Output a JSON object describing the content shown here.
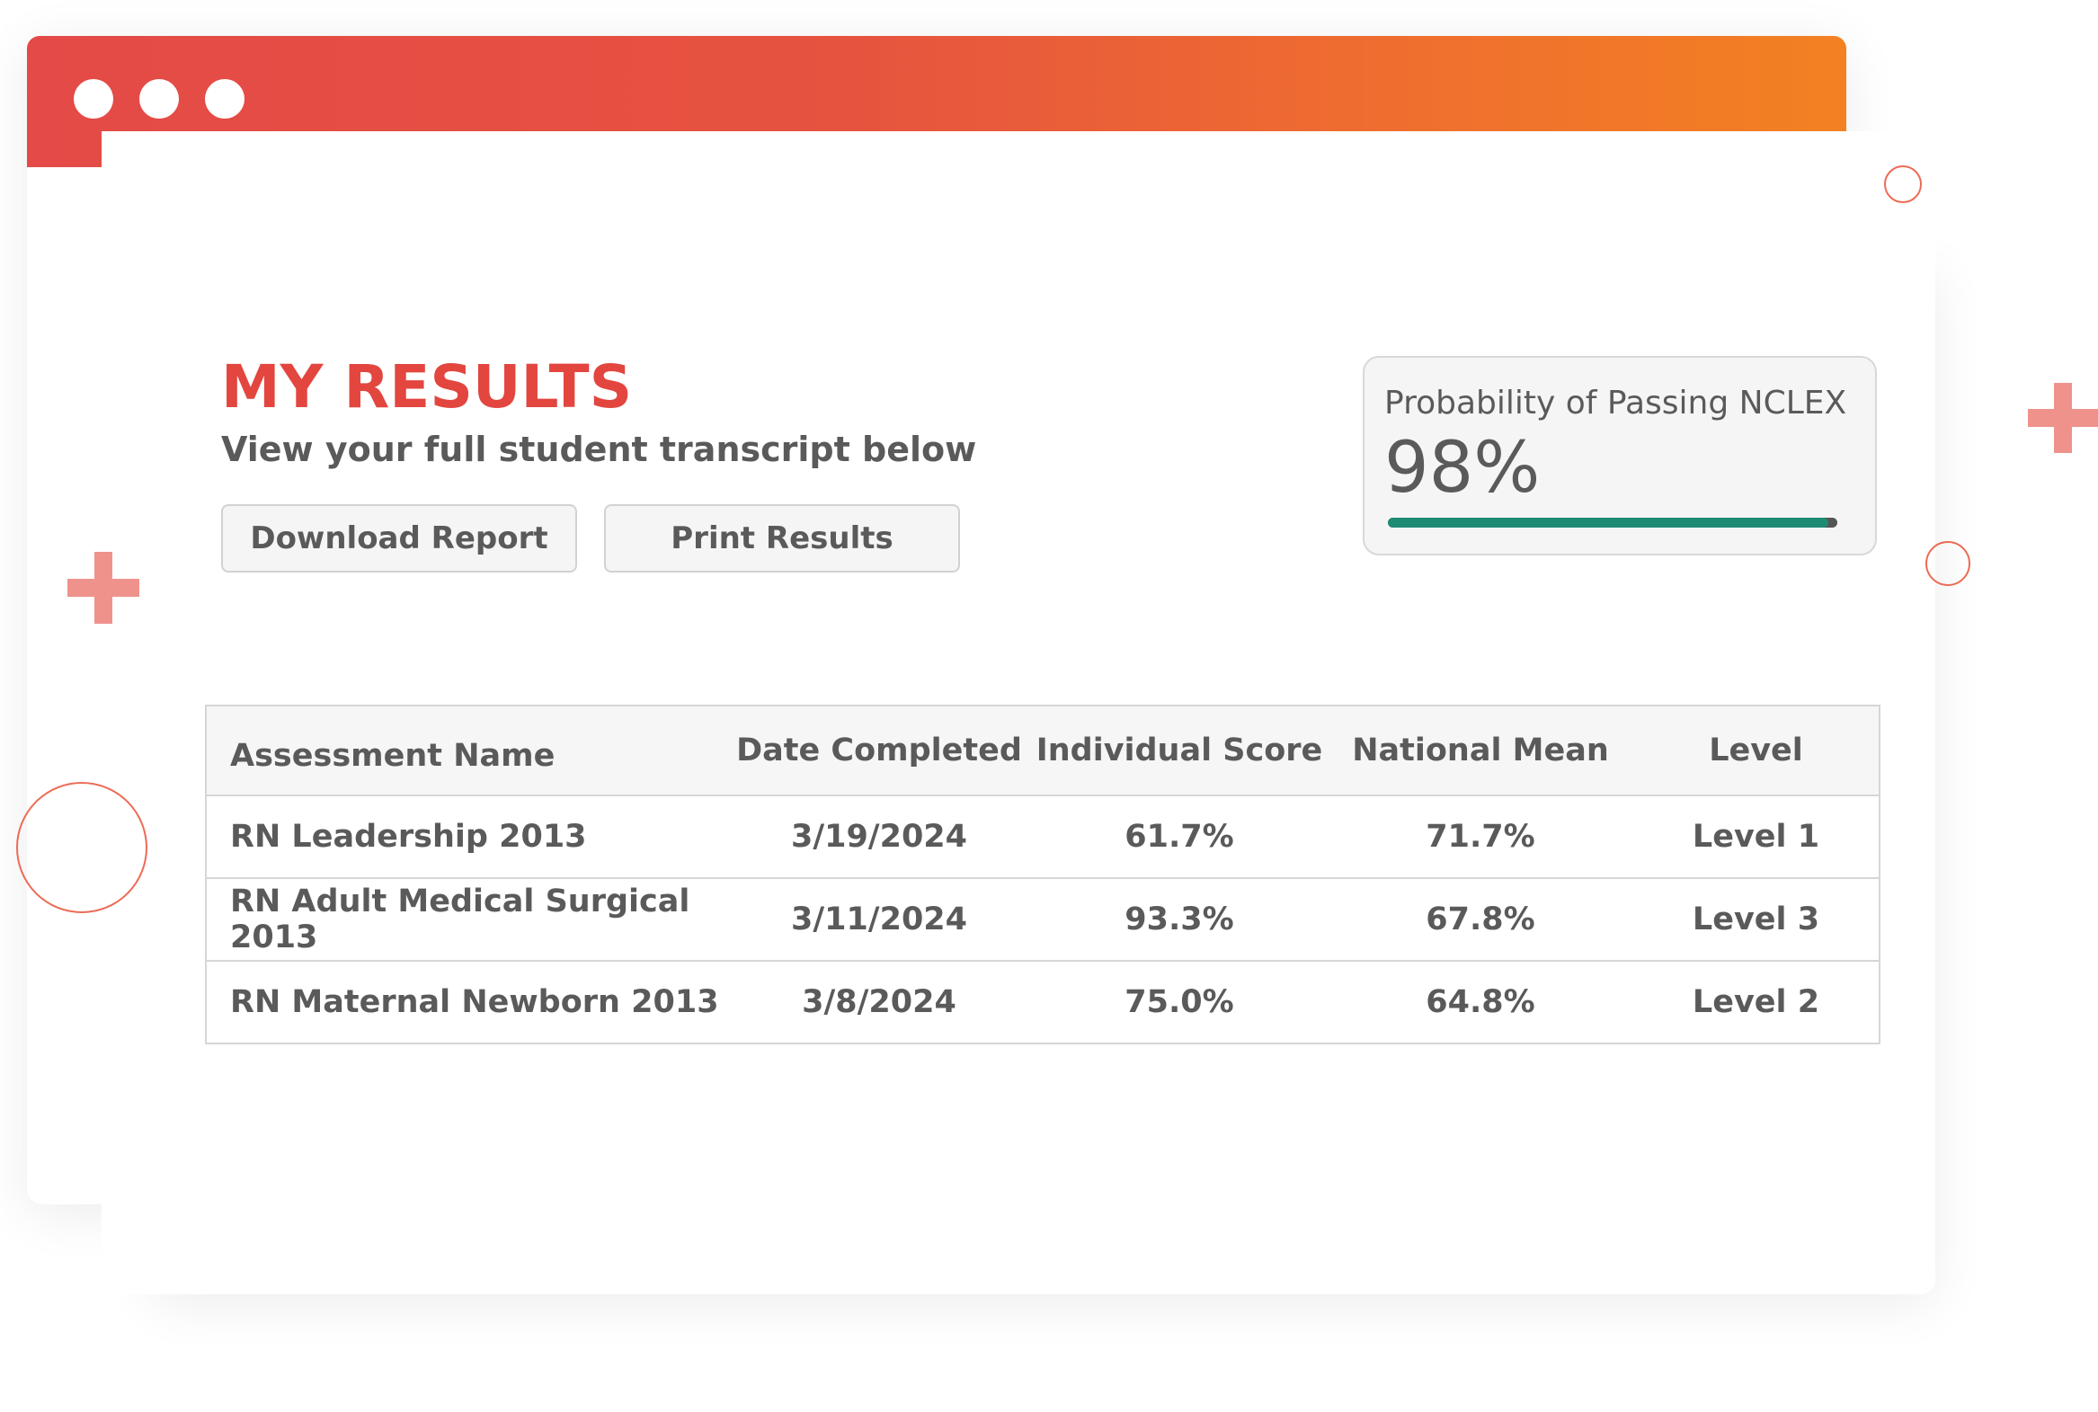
{
  "page": {
    "title": "MY RESULTS",
    "subtitle": "View your full student transcript below"
  },
  "actions": {
    "download_label": "Download Report",
    "print_label": "Print Results"
  },
  "probability": {
    "label": "Probability of Passing NCLEX",
    "value": "98%",
    "fraction": 0.98
  },
  "table": {
    "headers": {
      "name": "Assessment Name",
      "date": "Date Completed",
      "score": "Individual Score",
      "mean": "National Mean",
      "level": "Level"
    },
    "rows": [
      {
        "name": "RN Leadership 2013",
        "date": "3/19/2024",
        "score": "61.7%",
        "mean": "71.7%",
        "level": "Level 1"
      },
      {
        "name": "RN Adult Medical Surgical 2013",
        "date": "3/11/2024",
        "score": "93.3%",
        "mean": "67.8%",
        "level": "Level 3"
      },
      {
        "name": "RN Maternal Newborn 2013",
        "date": "3/8/2024",
        "score": "75.0%",
        "mean": "64.8%",
        "level": "Level 2"
      }
    ]
  },
  "colors": {
    "accent": "#e2463f",
    "titlebar_start": "#e44a47",
    "titlebar_end": "#f38122",
    "progress": "#1e8c74"
  }
}
